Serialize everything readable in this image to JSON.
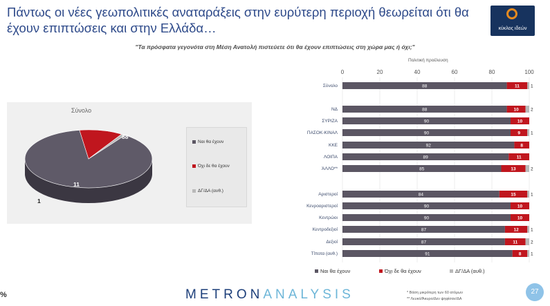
{
  "header": {
    "title": "Πάντως οι νέες γεωπολιτικές αναταράξεις στην ευρύτερη περιοχή θεωρείται ότι θα έχουν επιπτώσεις και στην Ελλάδα…",
    "logo_text": "κύκλος ιδεών"
  },
  "question": "\"Τα πρόσφατα γεγονότα στη Μέση Ανατολή πιστεύετε ότι θα έχουν επιπτώσεις στη χώρα μας ή όχι;\"",
  "colors": {
    "yes": "#5b5663",
    "no": "#c0161e",
    "dk": "#b9b9b9",
    "pie_top": "#5f5a68",
    "pie_side": "#3b3742"
  },
  "chart_data": [
    {
      "type": "pie",
      "title": "Σύνολο",
      "categories": [
        "Ναι θα έχουν",
        "Όχι δε θα έχουν",
        "ΔΓ/ΔΑ (αυθ.)"
      ],
      "values": [
        88,
        11,
        1
      ],
      "legend": "right"
    },
    {
      "type": "bar",
      "orientation": "horizontal",
      "stacked": true,
      "axis_title": "Πολιτική προέλευση",
      "xlim": [
        0,
        100
      ],
      "ticks": [
        0,
        20,
        40,
        60,
        80,
        100
      ],
      "categories": [
        "Σύνολο",
        "ΝΔ",
        "ΣΥΡΙΖΑ",
        "ΠΑΣΟΚ-ΚΙΝΑΛ",
        "ΚΚΕ",
        "ΛΟΙΠΑ",
        "ΆΛΛΟ**",
        "Αριστεροί",
        "Κενροαριστεροί",
        "Κεντρώοι",
        "Κεντροδεξιοί",
        "Δεξιοί",
        "Τίποτα (αυθ.)"
      ],
      "series": [
        {
          "name": "Ναι θα έχουν",
          "values": [
            88,
            88,
            90,
            90,
            92,
            89,
            85,
            84,
            90,
            90,
            87,
            87,
            91
          ]
        },
        {
          "name": "Όχι δε θα έχουν",
          "values": [
            11,
            10,
            10,
            9,
            8,
            11,
            13,
            15,
            10,
            10,
            12,
            11,
            8
          ]
        },
        {
          "name": "ΔΓ/ΔΑ (αυθ.)",
          "values": [
            1,
            2,
            0,
            1,
            0,
            0,
            2,
            1,
            0,
            0,
            1,
            2,
            1
          ]
        }
      ],
      "legend": "bottom"
    }
  ],
  "footer": {
    "brand_a": "METRON",
    "brand_b": "ANALYSIS",
    "note1": "*  Βάση μικρότερη των 60 ατόμων",
    "note2": "** Λευκό/Άκυρο/Δεν ψηφίσαν/ΔΑ",
    "page": "27",
    "percent_sign": "%"
  }
}
